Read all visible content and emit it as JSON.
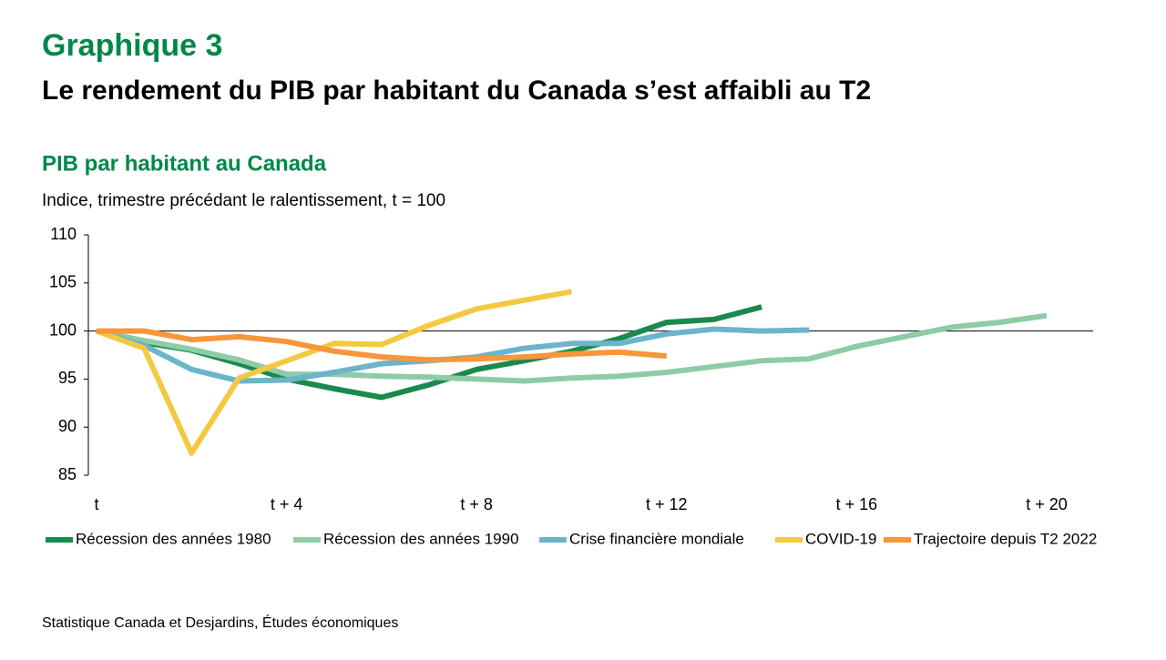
{
  "chart_data": {
    "type": "line",
    "figure_label": "Graphique 3",
    "title": "Le rendement du PIB par habitant du Canada s’est affaibli au T2",
    "chart_title": "PIB par habitant au Canada",
    "subtitle": "Indice, trimestre précédant le ralentissement, t = 100",
    "source": "Statistique Canada et Desjardins, Études économiques",
    "categories": [
      "t",
      null,
      null,
      null,
      "t + 4",
      null,
      null,
      null,
      "t + 8",
      null,
      null,
      null,
      "t + 12",
      null,
      null,
      null,
      "t + 16",
      null,
      null,
      null,
      "t + 20",
      null
    ],
    "ylim": [
      85,
      110
    ],
    "yticks": [
      85,
      90,
      95,
      100,
      105,
      110
    ],
    "reference_line": 100,
    "series": [
      {
        "name": "Récession des années 1980",
        "color": "#1a8a4c",
        "values": [
          100,
          98.8,
          98.0,
          96.6,
          95.0,
          94.0,
          93.1,
          94.4,
          96.0,
          96.9,
          97.9,
          99.2,
          100.9,
          101.2,
          102.5,
          null,
          null,
          null,
          null,
          null,
          null,
          null
        ]
      },
      {
        "name": "Récession des années 1990",
        "color": "#8fcca6",
        "values": [
          100,
          99.0,
          98.1,
          97.0,
          95.5,
          95.5,
          95.3,
          95.2,
          95.0,
          94.8,
          95.1,
          95.3,
          95.7,
          96.3,
          96.9,
          97.1,
          98.4,
          99.4,
          100.4,
          100.9,
          101.6,
          null
        ]
      },
      {
        "name": "Crise financière mondiale",
        "color": "#6cb4c9",
        "values": [
          100,
          98.5,
          96.0,
          94.8,
          94.9,
          95.7,
          96.6,
          96.9,
          97.3,
          98.2,
          98.7,
          98.7,
          99.7,
          100.2,
          100.0,
          100.1,
          null,
          null,
          null,
          null,
          null,
          null
        ]
      },
      {
        "name": "COVID-19",
        "color": "#f5c842",
        "values": [
          100,
          98.2,
          87.3,
          95.1,
          96.9,
          98.7,
          98.6,
          100.6,
          102.3,
          103.2,
          104.1,
          null,
          null,
          null,
          null,
          null,
          null,
          null,
          null,
          null,
          null,
          null
        ]
      },
      {
        "name": "Trajectoire depuis T2 2022",
        "color": "#f7963b",
        "values": [
          100,
          100,
          99.1,
          99.4,
          98.9,
          97.9,
          97.3,
          97.0,
          97.1,
          97.3,
          97.6,
          97.8,
          97.4,
          null,
          null,
          null,
          null,
          null,
          null,
          null,
          null,
          null
        ]
      }
    ]
  }
}
